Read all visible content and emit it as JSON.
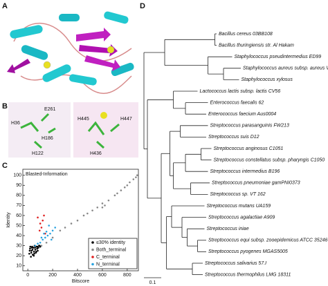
{
  "panel_labels": [
    "A",
    "B",
    "C",
    "D"
  ],
  "structure_labels": [
    "E261",
    "H36",
    "H186",
    "H122",
    "H445",
    "H447",
    "H436"
  ],
  "chart_data": [
    {
      "type": "scatter",
      "title": "Blasted-Information",
      "x_label": "Bitscore",
      "y_label": "Identity",
      "xlim": [
        -40,
        890
      ],
      "ylim": [
        5,
        106
      ],
      "xticks": [
        0,
        200,
        400,
        600,
        800
      ],
      "yticks": [
        10,
        20,
        30,
        40,
        50,
        60,
        70,
        80,
        90,
        100
      ],
      "series": [
        {
          "name": "≤30% identity",
          "color": "#000000",
          "x": [
            12,
            18,
            25,
            30,
            35,
            40,
            45,
            50,
            55,
            60,
            65,
            70,
            75,
            80,
            85,
            90,
            20,
            28,
            38,
            48,
            58,
            68,
            78,
            95,
            100,
            15,
            33,
            52
          ],
          "values": [
            22,
            27,
            19,
            25,
            29,
            21,
            28,
            24,
            30,
            26,
            23,
            29,
            27,
            25,
            28,
            30,
            29,
            23,
            26,
            20,
            28,
            24,
            29,
            30,
            29,
            25,
            28,
            22
          ]
        },
        {
          "name": "Both_terminal",
          "color": "#888888",
          "x": [
            110,
            150,
            200,
            260,
            300,
            350,
            400,
            450,
            480,
            520,
            560,
            600,
            650,
            700,
            720,
            750,
            780,
            800,
            820,
            850,
            870,
            880,
            600,
            620
          ],
          "values": [
            30,
            33,
            38,
            45,
            48,
            52,
            55,
            60,
            62,
            65,
            68,
            72,
            75,
            80,
            82,
            85,
            88,
            90,
            93,
            96,
            98,
            100,
            68,
            70
          ]
        },
        {
          "name": "C_terminal",
          "color": "#e02020",
          "x": [
            80,
            95,
            110,
            120,
            130,
            140,
            100
          ],
          "values": [
            58,
            45,
            48,
            55,
            60,
            42,
            52
          ]
        },
        {
          "name": "N_terminal",
          "color": "#29a3e0",
          "x": [
            60,
            80,
            100,
            120,
            140,
            160,
            180,
            200,
            220,
            110,
            150,
            190,
            130,
            170
          ],
          "values": [
            30,
            32,
            33,
            36,
            38,
            40,
            42,
            45,
            48,
            38,
            44,
            36,
            42,
            50
          ]
        }
      ]
    },
    {
      "type": "tree",
      "scale_bar": 0.1,
      "tree": {
        "children": [
          {
            "length": 0.12,
            "children": [
              {
                "length": 0.29,
                "children": [
                  {
                    "length": 0.01,
                    "label": "Bacillus cereus 03BB108"
                  },
                  {
                    "length": 0.01,
                    "label": "Bacillus thuringiensis str. Al Hakam"
                  }
                ]
              },
              {
                "length": 0.25,
                "children": [
                  {
                    "length": 0.14,
                    "label": "Staphylococcus pseudintermedius ED99"
                  },
                  {
                    "length": 0.09,
                    "children": [
                      {
                        "length": 0.1,
                        "label": "Staphylococcus aureus subsp. aureus VC40"
                      },
                      {
                        "length": 0.09,
                        "label": "Staphylococcus xylosus"
                      }
                    ]
                  }
                ]
              }
            ]
          },
          {
            "length": 0.02,
            "children": [
              {
                "length": 0.15,
                "children": [
                  {
                    "length": 0.14,
                    "label": "Lactococcus lactis subsp. lactis CV56"
                  },
                  {
                    "length": 0.07,
                    "children": [
                      {
                        "length": 0.13,
                        "label": "Enterococcus faecalis 62"
                      },
                      {
                        "length": 0.12,
                        "label": "Enterococcus faecium Aus0004"
                      }
                    ]
                  }
                ]
              },
              {
                "length": 0.08,
                "children": [
                  {
                    "length": 0.05,
                    "children": [
                      {
                        "length": 0.06,
                        "children": [
                          {
                            "length": 0.16,
                            "label": "Streptococcus parasanguinis FW213"
                          },
                          {
                            "length": 0.15,
                            "label": "Streptococcus suis D12"
                          }
                        ]
                      },
                      {
                        "length": 0.02,
                        "children": [
                          {
                            "length": 0.07,
                            "children": [
                              {
                                "length": 0.09,
                                "children": [
                                  {
                                    "length": 0.06,
                                    "label": "Streptococcus anginosus C1051"
                                  },
                                  {
                                    "length": 0.06,
                                    "label": "Streptococcus constellatus subsp. pharyngis C1050"
                                  }
                                ]
                              },
                              {
                                "length": 0.13,
                                "label": "Streptococcus intermedius B196"
                              }
                            ]
                          },
                          {
                            "length": 0.1,
                            "children": [
                              {
                                "length": 0.11,
                                "label": "Streptococcus pneumoniae gamPNI0373"
                              },
                              {
                                "length": 0.1,
                                "label": "Streptococcus sp. VT 162"
                              }
                            ]
                          }
                        ]
                      }
                    ]
                  },
                  {
                    "length": 0.03,
                    "children": [
                      {
                        "length": 0.03,
                        "children": [
                          {
                            "length": 0.19,
                            "label": "Streptococcus mutans UA159"
                          },
                          {
                            "length": 0.06,
                            "children": [
                              {
                                "length": 0.14,
                                "label": "Streptococcus agalactiae A909"
                              },
                              {
                                "length": 0.03,
                                "children": [
                                  {
                                    "length": 0.1,
                                    "label": "Streptococcus iniae"
                                  },
                                  {
                                    "length": 0.06,
                                    "children": [
                                      {
                                        "length": 0.05,
                                        "label": "Streptococcus equi subsp. zooepidemicus ATCC 35246"
                                      },
                                      {
                                        "length": 0.05,
                                        "label": "Streptococcus pyogenes MGAS5005"
                                      }
                                    ]
                                  }
                                ]
                              }
                            ]
                          }
                        ]
                      },
                      {
                        "length": 0.15,
                        "children": [
                          {
                            "length": 0.06,
                            "label": "Streptococcus salivarius 57.I"
                          },
                          {
                            "length": 0.06,
                            "label": "Streptococcus thermophilus LMG 18311"
                          }
                        ]
                      }
                    ]
                  }
                ]
              }
            ]
          }
        ]
      }
    }
  ]
}
